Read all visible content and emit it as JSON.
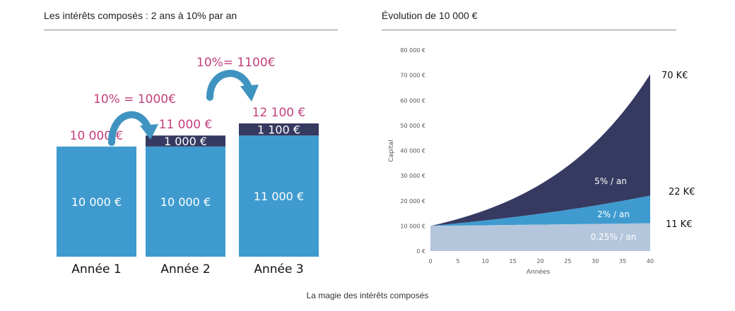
{
  "left_panel": {
    "title": "Les intérêts composés : 2 ans à 10% par an"
  },
  "right_panel": {
    "title": "Évolution de 10 000 €"
  },
  "caption": "La magie des intérêts composés",
  "colors": {
    "light_blue": "#3f9bcf",
    "dark_navy": "#363a61",
    "pale_blue": "#b4c6dc",
    "pink": "#c2407c"
  },
  "chart_data": [
    {
      "type": "bar",
      "stacked": true,
      "categories": [
        "Année 1",
        "Année 2",
        "Année 3"
      ],
      "series": [
        {
          "values": [
            10000,
            10000,
            11000
          ],
          "labels": [
            "10 000 €",
            "10 000 €",
            "11 000 €"
          ]
        },
        {
          "values": [
            0,
            1000,
            1100
          ],
          "labels": [
            "",
            "1 000 €",
            "1 100 €"
          ]
        }
      ],
      "totals": [
        "10 000 €",
        "11 000 €",
        "12 100 €"
      ],
      "annotations": [
        "10% = 1000€",
        "10%= 1100€"
      ],
      "ylim": [
        0,
        12100
      ]
    },
    {
      "type": "area",
      "xlabel": "Années",
      "ylabel": "Capital",
      "xlim": [
        0,
        40
      ],
      "ylim": [
        0,
        80000
      ],
      "x_ticks": [
        "0",
        "5",
        "10",
        "15",
        "20",
        "25",
        "30",
        "35",
        "40"
      ],
      "y_ticks": [
        "0 €",
        "10 000 €",
        "20 000 €",
        "30 000 €",
        "40 000 €",
        "50 000 €",
        "60 000 €",
        "70 000 €",
        "80 000 €"
      ],
      "series": [
        {
          "name": "0,25% / an",
          "rate": 0.0025,
          "start": 10000,
          "end_label": "11 K€"
        },
        {
          "name": "2% / an",
          "rate": 0.02,
          "start": 10000,
          "end_label": "22 K€"
        },
        {
          "name": "5% / an",
          "rate": 0.05,
          "start": 10000,
          "end_label": "70 K€"
        }
      ]
    }
  ]
}
